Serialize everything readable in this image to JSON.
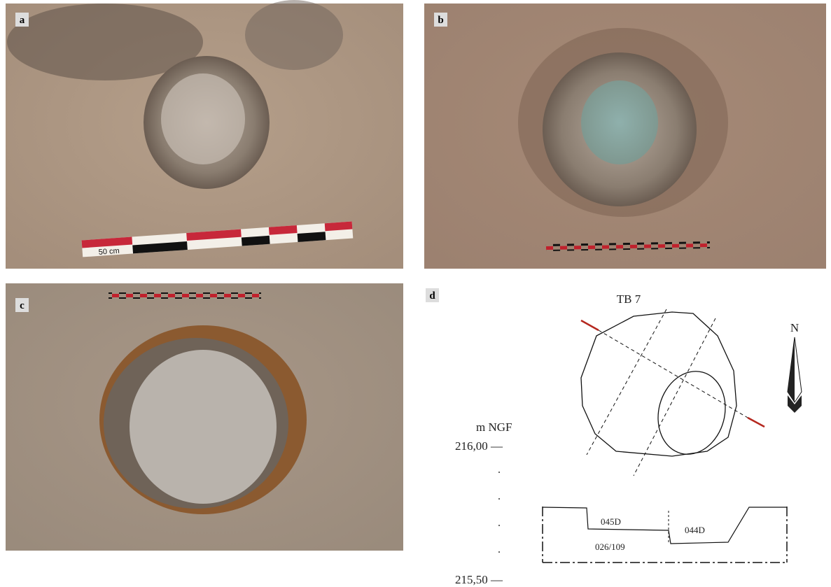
{
  "panels": [
    {
      "label": "a",
      "scale_label": "50 cm"
    },
    {
      "label": "b"
    },
    {
      "label": "c"
    },
    {
      "label": "d",
      "drawing": {
        "title": "TB 7",
        "north": "N",
        "unit": "m NGF",
        "levels": [
          "216,00 —",
          "215,50 —"
        ],
        "units": [
          "045D",
          "044D",
          "026/109"
        ]
      }
    }
  ]
}
